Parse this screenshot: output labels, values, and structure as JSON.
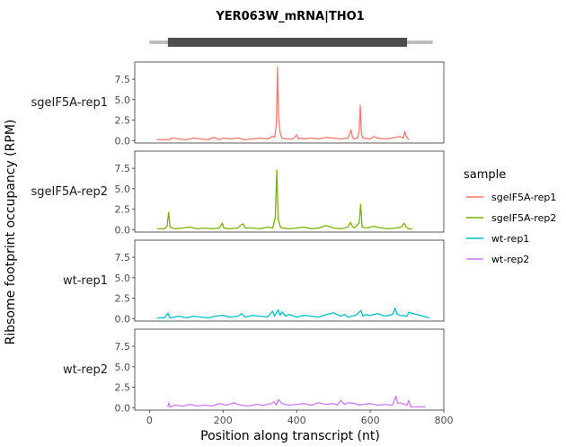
{
  "chart_data": {
    "type": "line",
    "title": "YER063W_mRNA|THO1",
    "xlabel": "Position along transcript (nt)",
    "ylabel": "Ribsome footprint occupancy (RPM)",
    "xlim": [
      -40,
      800
    ],
    "ylim": [
      -0.3,
      9.6
    ],
    "x_ticks": [
      0,
      200,
      400,
      600,
      800
    ],
    "y_ticks": [
      0.0,
      2.5,
      5.0,
      7.5
    ],
    "y_tick_labels": [
      "0.0",
      "2.5",
      "5.0",
      "7.5"
    ],
    "gene_model": {
      "transcript": [
        0,
        770
      ],
      "cds": [
        50,
        700
      ]
    },
    "legend": {
      "title": "sample",
      "position": "right"
    },
    "series": [
      {
        "name": "sgeIF5A-rep1",
        "color": "#F8766D",
        "x": [
          20,
          40,
          55,
          60,
          80,
          100,
          120,
          140,
          160,
          175,
          190,
          200,
          220,
          240,
          260,
          280,
          300,
          320,
          335,
          340,
          345,
          348,
          351,
          355,
          360,
          370,
          390,
          400,
          405,
          410,
          420,
          440,
          460,
          480,
          500,
          520,
          540,
          548,
          552,
          556,
          565,
          570,
          573,
          576,
          580,
          600,
          610,
          620,
          640,
          660,
          680,
          690,
          694,
          698,
          705
        ],
        "y": [
          0.1,
          0.1,
          0.1,
          0.3,
          0.2,
          0.1,
          0.3,
          0.2,
          0.1,
          0.4,
          0.1,
          0.3,
          0.2,
          0.3,
          0.1,
          0.2,
          0.3,
          0.2,
          0.5,
          0.4,
          2.0,
          9.0,
          3.0,
          1.0,
          0.3,
          0.2,
          0.2,
          0.7,
          0.2,
          0.3,
          0.2,
          0.3,
          0.2,
          0.4,
          0.3,
          0.2,
          0.3,
          1.3,
          0.4,
          0.2,
          0.3,
          1.2,
          4.3,
          0.8,
          0.3,
          0.2,
          0.5,
          0.3,
          0.2,
          0.3,
          0.5,
          0.3,
          1.1,
          0.5,
          0.1
        ]
      },
      {
        "name": "sgeIF5A-rep2",
        "color": "#7CAE00",
        "x": [
          20,
          40,
          48,
          52,
          56,
          70,
          90,
          110,
          130,
          150,
          170,
          190,
          198,
          202,
          215,
          240,
          250,
          255,
          260,
          280,
          300,
          320,
          335,
          342,
          346,
          350,
          356,
          362,
          380,
          400,
          420,
          440,
          460,
          480,
          500,
          520,
          540,
          546,
          550,
          556,
          570,
          574,
          578,
          590,
          610,
          630,
          650,
          670,
          685,
          692,
          698,
          705,
          715
        ],
        "y": [
          0.1,
          0.1,
          0.4,
          2.1,
          0.3,
          0.1,
          0.2,
          0.3,
          0.1,
          0.2,
          0.1,
          0.2,
          0.8,
          0.2,
          0.1,
          0.2,
          0.6,
          0.7,
          0.2,
          0.2,
          0.1,
          0.3,
          0.2,
          1.5,
          7.3,
          1.2,
          0.3,
          0.2,
          0.1,
          0.2,
          0.3,
          0.1,
          0.2,
          0.5,
          0.2,
          0.1,
          0.3,
          0.9,
          0.5,
          0.2,
          0.8,
          3.1,
          0.3,
          0.2,
          0.4,
          0.2,
          0.1,
          0.2,
          0.3,
          0.8,
          0.3,
          0.1,
          0.1
        ]
      },
      {
        "name": "wt-rep1",
        "color": "#00BFC4",
        "x": [
          20,
          40,
          45,
          50,
          55,
          80,
          100,
          120,
          140,
          160,
          180,
          200,
          220,
          240,
          250,
          260,
          280,
          300,
          320,
          335,
          340,
          350,
          355,
          360,
          370,
          380,
          400,
          420,
          440,
          460,
          480,
          500,
          520,
          530,
          540,
          560,
          575,
          580,
          590,
          600,
          620,
          640,
          660,
          668,
          672,
          680,
          700,
          705,
          710,
          760
        ],
        "y": [
          0.1,
          0.1,
          0.3,
          0.7,
          0.1,
          0.3,
          0.1,
          0.3,
          0.2,
          0.1,
          0.3,
          0.4,
          0.2,
          0.3,
          0.6,
          0.2,
          0.4,
          0.3,
          0.2,
          0.9,
          0.3,
          1.1,
          0.4,
          0.8,
          0.3,
          0.5,
          0.2,
          0.4,
          0.3,
          0.2,
          0.5,
          0.7,
          0.3,
          0.5,
          0.2,
          0.4,
          1.0,
          0.3,
          0.5,
          0.4,
          0.6,
          0.3,
          0.5,
          1.3,
          0.6,
          0.4,
          0.3,
          0.8,
          0.7,
          0.1
        ]
      },
      {
        "name": "wt-rep2",
        "color": "#C77CFF",
        "x": [
          50,
          52,
          56,
          70,
          90,
          110,
          130,
          150,
          170,
          190,
          210,
          230,
          240,
          250,
          270,
          290,
          310,
          330,
          340,
          345,
          350,
          360,
          380,
          400,
          420,
          440,
          460,
          480,
          500,
          510,
          520,
          530,
          540,
          560,
          570,
          580,
          600,
          620,
          640,
          660,
          670,
          675,
          680,
          700,
          705,
          710,
          750
        ],
        "y": [
          0.1,
          0.6,
          0.1,
          0.3,
          0.2,
          0.4,
          0.2,
          0.3,
          0.2,
          0.5,
          0.3,
          0.6,
          0.4,
          0.3,
          0.2,
          0.4,
          0.3,
          0.5,
          0.7,
          0.3,
          1.0,
          0.5,
          0.3,
          0.4,
          0.5,
          0.3,
          0.6,
          0.4,
          0.5,
          0.3,
          0.9,
          0.4,
          0.6,
          0.5,
          0.3,
          0.4,
          0.5,
          0.3,
          0.4,
          0.3,
          1.4,
          0.5,
          0.6,
          0.3,
          0.9,
          0.1,
          0.1
        ]
      }
    ]
  }
}
